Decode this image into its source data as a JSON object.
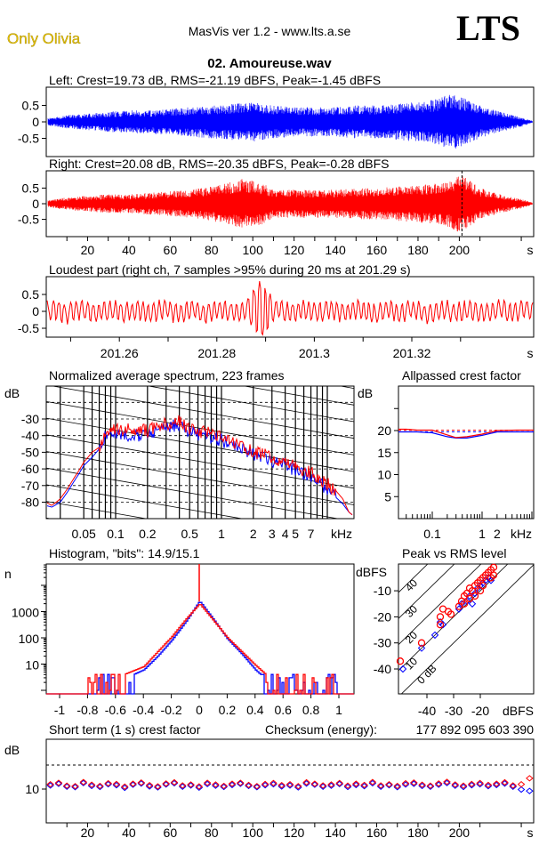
{
  "header": {
    "artist": "Only Olivia",
    "app_title": "MasVis ver 1.2 - www.lts.a.se",
    "logo": "LTS",
    "file_name": "02. Amoureuse.wav"
  },
  "colors": {
    "left": "#0000ff",
    "right": "#ff0000"
  },
  "chart_data": [
    {
      "id": "left_waveform",
      "type": "line",
      "title": "Left: Crest=19.73 dB, RMS=-21.19 dBFS, Peak=-1.45 dBFS",
      "yticks": [
        "0.5",
        "0",
        "-0.5"
      ],
      "ylim": [
        -1,
        1
      ],
      "xlim": [
        0,
        236
      ],
      "envelope_t": [
        0,
        10,
        20,
        30,
        40,
        50,
        60,
        70,
        80,
        90,
        100,
        110,
        120,
        130,
        140,
        150,
        160,
        170,
        180,
        190,
        195,
        200,
        210,
        220,
        230,
        236
      ],
      "envelope": [
        0.1,
        0.2,
        0.25,
        0.3,
        0.35,
        0.35,
        0.4,
        0.45,
        0.5,
        0.55,
        0.6,
        0.5,
        0.45,
        0.45,
        0.45,
        0.5,
        0.5,
        0.55,
        0.6,
        0.7,
        0.85,
        0.8,
        0.5,
        0.3,
        0.15,
        0.02
      ]
    },
    {
      "id": "right_waveform",
      "type": "line",
      "title": "Right: Crest=20.08 dB, RMS=-20.35 dBFS, Peak=-0.28 dBFS",
      "yticks": [
        "0.5",
        "0",
        "-0.5"
      ],
      "ylim": [
        -1,
        1
      ],
      "xlim": [
        0,
        236
      ],
      "xticks": [
        "20",
        "40",
        "60",
        "80",
        "100",
        "120",
        "140",
        "160",
        "180",
        "200"
      ],
      "xunit": "s",
      "marker_time": 201.29,
      "envelope_t": [
        0,
        10,
        20,
        30,
        40,
        50,
        60,
        70,
        80,
        90,
        95,
        100,
        105,
        110,
        120,
        130,
        140,
        150,
        160,
        170,
        180,
        190,
        195,
        200,
        202,
        210,
        220,
        230,
        236
      ],
      "envelope": [
        0.1,
        0.2,
        0.25,
        0.3,
        0.3,
        0.35,
        0.4,
        0.45,
        0.55,
        0.7,
        0.8,
        0.75,
        0.65,
        0.45,
        0.45,
        0.45,
        0.45,
        0.5,
        0.5,
        0.55,
        0.6,
        0.65,
        0.75,
        0.95,
        0.9,
        0.5,
        0.3,
        0.15,
        0.02
      ]
    },
    {
      "id": "loudest_part",
      "type": "line",
      "title": "Loudest part (right ch, 7 samples >95% during 20 ms at 201.29 s)",
      "yticks": [
        "0.5",
        "0",
        "-0.5"
      ],
      "ylim": [
        -1,
        1
      ],
      "xlim": [
        201.245,
        201.345
      ],
      "xticks": [
        "201.26",
        "201.28",
        "201.3",
        "201.32"
      ],
      "xunit": "s",
      "peak_time": 201.289,
      "peak_value": 0.97
    },
    {
      "id": "spectrum",
      "type": "line",
      "title": "Normalized average spectrum, 223 frames",
      "ylabel": "dB",
      "yticks": [
        "-30",
        "-40",
        "-50",
        "-60",
        "-70",
        "-80"
      ],
      "ylim": [
        -90,
        -10
      ],
      "xticks": [
        "0.05",
        "0.1",
        "0.2",
        "0.5",
        "1",
        "2",
        "3",
        "4",
        "5",
        "7"
      ],
      "xunit": "kHz",
      "xscale": "log",
      "xlim": [
        0.022,
        18
      ],
      "grid": true,
      "x": [
        0.022,
        0.025,
        0.03,
        0.035,
        0.04,
        0.045,
        0.05,
        0.06,
        0.07,
        0.08,
        0.1,
        0.15,
        0.2,
        0.3,
        0.4,
        0.5,
        0.7,
        1,
        1.5,
        2,
        3,
        4,
        5,
        7,
        10,
        12,
        14,
        16,
        17.5
      ],
      "series": [
        {
          "channel": "left",
          "values": [
            -82,
            -83,
            -80,
            -74,
            -68,
            -63,
            -58,
            -53,
            -48,
            -40,
            -39,
            -40,
            -39,
            -35,
            -33,
            -38,
            -40,
            -43,
            -47,
            -51,
            -55,
            -58,
            -61,
            -64,
            -72,
            -77,
            -81,
            -86,
            -88
          ]
        },
        {
          "channel": "right",
          "values": [
            -80,
            -82,
            -78,
            -72,
            -66,
            -61,
            -56,
            -50,
            -47,
            -38,
            -36,
            -37,
            -37,
            -33,
            -31,
            -36,
            -38,
            -41,
            -45,
            -50,
            -53,
            -56,
            -59,
            -62,
            -69,
            -73,
            -78,
            -86,
            -88
          ]
        }
      ]
    },
    {
      "id": "allpassed_crest",
      "type": "line",
      "title": "Allpassed crest factor",
      "ylabel": "dB",
      "yticks": [
        "20",
        "15",
        "10",
        "5"
      ],
      "ylim": [
        0,
        30
      ],
      "xticks": [
        "0.1",
        "1",
        "2"
      ],
      "xunit": "kHz",
      "xscale": "log",
      "xlim": [
        0.021,
        11
      ],
      "x": [
        0.021,
        0.03,
        0.05,
        0.1,
        0.2,
        0.3,
        0.5,
        1,
        2,
        5,
        11
      ],
      "series": [
        {
          "channel": "left",
          "values": [
            19.7,
            19.7,
            19.7,
            19.5,
            18.6,
            18.3,
            18.3,
            18.9,
            19.7,
            19.7,
            19.7
          ],
          "reference": 19.73
        },
        {
          "channel": "right",
          "values": [
            20.3,
            20.3,
            20.1,
            20.1,
            19.0,
            18.4,
            18.6,
            19.2,
            20.0,
            20.1,
            20.1
          ],
          "reference": 20.08
        }
      ]
    },
    {
      "id": "histogram",
      "type": "line",
      "title": "Histogram, \"bits\": 14.9/15.1",
      "ylabel": "n",
      "yticks": [
        "1000",
        "100",
        "10"
      ],
      "yscale": "log",
      "xticks": [
        "-1",
        "-0.8",
        "-0.6",
        "-0.4",
        "-0.2",
        "0",
        "0.2",
        "0.4",
        "0.6",
        "0.8",
        "1"
      ],
      "xlim": [
        -1.1,
        1.1
      ],
      "x": [
        -0.8,
        -0.6,
        -0.4,
        -0.3,
        -0.2,
        -0.1,
        0,
        0.1,
        0.2,
        0.3,
        0.4,
        0.5,
        0.6,
        0.8,
        0.97
      ],
      "series": [
        {
          "channel": "left",
          "values": [
            1,
            2,
            6,
            20,
            80,
            400,
            2500,
            500,
            90,
            25,
            6,
            2,
            1,
            1,
            0
          ]
        },
        {
          "channel": "right",
          "values": [
            1,
            3,
            8,
            30,
            110,
            500,
            2000,
            450,
            100,
            30,
            9,
            3,
            2,
            1,
            1
          ]
        }
      ],
      "zero_spike": 90000
    },
    {
      "id": "peak_vs_rms",
      "type": "scatter",
      "title": "Peak vs RMS level",
      "ylabel": "dBFS",
      "xlabel": "dBFS",
      "yticks": [
        "-10",
        "-20",
        "-30",
        "-40"
      ],
      "xticks": [
        "-40",
        "-30",
        "-20"
      ],
      "xlim": [
        -51,
        -10
      ],
      "ylim": [
        -49.5,
        0
      ],
      "crest_lines": [
        "0 dB",
        "10",
        "20",
        "30",
        "40"
      ],
      "series": [
        {
          "channel": "left",
          "points": [
            [
              -49,
              -40
            ],
            [
              -42,
              -32
            ],
            [
              -37,
              -27
            ],
            [
              -35,
              -22
            ],
            [
              -34,
              -23
            ],
            [
              -28,
              -17
            ],
            [
              -27,
              -15
            ],
            [
              -25,
              -14
            ],
            [
              -24,
              -12
            ],
            [
              -23,
              -15
            ],
            [
              -22,
              -11
            ],
            [
              -21,
              -9
            ],
            [
              -20,
              -8
            ],
            [
              -19,
              -7
            ],
            [
              -18,
              -6
            ],
            [
              -17,
              -5
            ],
            [
              -16,
              -6
            ]
          ]
        },
        {
          "channel": "right",
          "points": [
            [
              -50,
              -37
            ],
            [
              -42,
              -30
            ],
            [
              -35,
              -23
            ],
            [
              -35,
              -20
            ],
            [
              -34,
              -17
            ],
            [
              -32,
              -18
            ],
            [
              -31,
              -19
            ],
            [
              -28,
              -16
            ],
            [
              -27,
              -14
            ],
            [
              -26,
              -12
            ],
            [
              -25,
              -11
            ],
            [
              -24,
              -13
            ],
            [
              -24,
              -9
            ],
            [
              -23,
              -10
            ],
            [
              -22,
              -8
            ],
            [
              -21,
              -7
            ],
            [
              -20,
              -6
            ],
            [
              -19,
              -5
            ],
            [
              -19,
              -8
            ],
            [
              -18,
              -4
            ],
            [
              -17,
              -3
            ],
            [
              -16,
              -2
            ],
            [
              -16,
              -5
            ],
            [
              -15,
              -1
            ],
            [
              -15,
              -4
            ],
            [
              -20,
              -10
            ],
            [
              -22,
              -12
            ],
            [
              -26,
              -15
            ]
          ]
        }
      ]
    },
    {
      "id": "short_term_crest",
      "type": "scatter",
      "title": "Short term (1 s) crest factor",
      "ylabel": "dB",
      "yticks": [
        "10"
      ],
      "ylim": [
        -4,
        30
      ],
      "reference_line": 20,
      "xticks": [
        "20",
        "40",
        "60",
        "80",
        "100",
        "120",
        "140",
        "160",
        "180",
        "200"
      ],
      "xunit": "s",
      "xlim": [
        0,
        238
      ],
      "x_step": 4,
      "series": [
        {
          "channel": "left",
          "values": [
            11.5,
            12.2,
            11.0,
            10.8,
            12.5,
            11.3,
            10.9,
            12.0,
            11.6,
            10.5,
            11.8,
            12.3,
            11.1,
            10.7,
            11.9,
            12.4,
            11.0,
            11.5,
            10.6,
            12.1,
            11.4,
            10.9,
            11.7,
            12.2,
            11.3,
            10.8,
            11.6,
            12.0,
            11.1,
            11.5,
            10.7,
            12.3,
            11.8,
            11.0,
            11.4,
            12.1,
            10.9,
            11.7,
            11.2,
            12.4,
            11.0,
            11.6,
            10.8,
            11.9,
            12.2,
            11.3,
            11.0,
            11.8,
            12.5,
            11.4,
            10.9,
            11.6,
            12.0,
            11.2,
            11.7,
            12.3,
            11.0,
            9.8,
            9.2
          ]
        },
        {
          "channel": "right",
          "values": [
            12.0,
            12.6,
            11.4,
            11.2,
            12.9,
            11.8,
            11.3,
            12.4,
            12.1,
            11.0,
            12.2,
            12.7,
            11.6,
            11.1,
            12.3,
            12.8,
            11.5,
            11.9,
            11.1,
            12.6,
            11.9,
            11.3,
            12.2,
            12.6,
            11.7,
            11.2,
            12.1,
            12.5,
            11.6,
            12.0,
            11.2,
            12.8,
            12.2,
            11.5,
            11.9,
            12.5,
            11.4,
            12.2,
            11.7,
            12.9,
            11.5,
            12.0,
            11.3,
            12.4,
            12.7,
            11.8,
            11.4,
            12.3,
            13.0,
            11.9,
            11.4,
            12.1,
            12.5,
            11.7,
            12.2,
            12.8,
            11.5,
            12.0,
            14.5
          ]
        }
      ]
    }
  ],
  "checksum": {
    "label": "Checksum (energy):",
    "value": "177 892 095 603 390"
  }
}
